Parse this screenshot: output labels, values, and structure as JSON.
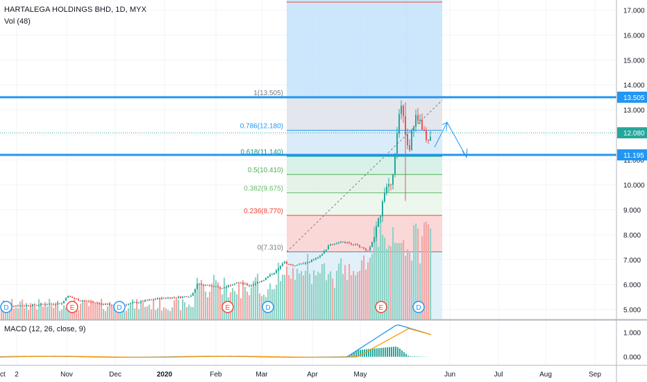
{
  "header": {
    "title": "HARTALEGA HOLDINGS BHD, 1D, MYX",
    "volume_label": "Vol (48)",
    "macd_label": "MACD (12, 26, close, 9)"
  },
  "colors": {
    "up": "#26a69a",
    "down": "#ef5350",
    "vol_up": "#8fd3c6",
    "vol_down": "#f3a6a5",
    "fib_blue": "#2196f3",
    "macd_line": "#2196f3",
    "signal_line": "#ff9800",
    "grid": "#f0f3fa",
    "axis_text": "#131722"
  },
  "chart_data": {
    "type": "candlestick",
    "symbol": "HARTALEGA HOLDINGS BHD",
    "interval": "1D",
    "exchange": "MYX",
    "y_axis": {
      "ticks": [
        "5.000",
        "6.000",
        "7.000",
        "8.000",
        "9.000",
        "10.000",
        "11.000",
        "12.000",
        "13.000",
        "14.000",
        "15.000",
        "16.000",
        "17.000"
      ],
      "range": [
        4.6,
        17.4
      ]
    },
    "x_axis": {
      "ticks": [
        "2",
        "Nov",
        "Dec",
        "2020",
        "Feb",
        "Mar",
        "Apr",
        "May",
        "Jun",
        "Jul",
        "Aug",
        "Sep",
        "Oct"
      ]
    },
    "price_labels": [
      {
        "value": 13.505,
        "text": "13.505",
        "style": "blue"
      },
      {
        "value": 12.08,
        "text": "12.080",
        "style": "teal"
      },
      {
        "value": 11.195,
        "text": "11.195",
        "style": "blue"
      }
    ],
    "horizontal_lines": [
      13.505,
      11.195
    ],
    "fibonacci": {
      "low": 7.31,
      "high": 13.505,
      "levels": [
        {
          "level": "1",
          "price": 13.505,
          "label": "1(13.505)",
          "color": "#787b86"
        },
        {
          "level": "0.786",
          "price": 12.18,
          "label": "0.786(12.180)",
          "color": "#2196f3"
        },
        {
          "level": "0.618",
          "price": 11.14,
          "label": "0.618(11.140)",
          "color": "#089981"
        },
        {
          "level": "0.5",
          "price": 10.41,
          "label": "0.5(10.410)",
          "color": "#4caf50"
        },
        {
          "level": "0.382",
          "price": 9.675,
          "label": "0.382(9.675)",
          "color": "#66bb6a"
        },
        {
          "level": "0.236",
          "price": 8.77,
          "label": "0.236(8.770)",
          "color": "#f44336"
        },
        {
          "level": "0",
          "price": 7.31,
          "label": "0(7.310)",
          "color": "#787b86"
        }
      ]
    },
    "event_markers": [
      {
        "type": "D",
        "month": "Oct"
      },
      {
        "type": "E",
        "month": "Nov"
      },
      {
        "type": "D",
        "month": "Dec"
      },
      {
        "type": "E",
        "month": "Feb"
      },
      {
        "type": "D",
        "month": "Mar"
      },
      {
        "type": "E",
        "month": "May"
      },
      {
        "type": "D",
        "month": "Jun"
      }
    ],
    "projection_path": [
      {
        "price": 11.5
      },
      {
        "price": 12.5
      },
      {
        "price": 11.1
      }
    ],
    "macd": {
      "ticks": [
        "0.000",
        "1.000"
      ],
      "range": [
        -0.35,
        1.5
      ]
    }
  }
}
